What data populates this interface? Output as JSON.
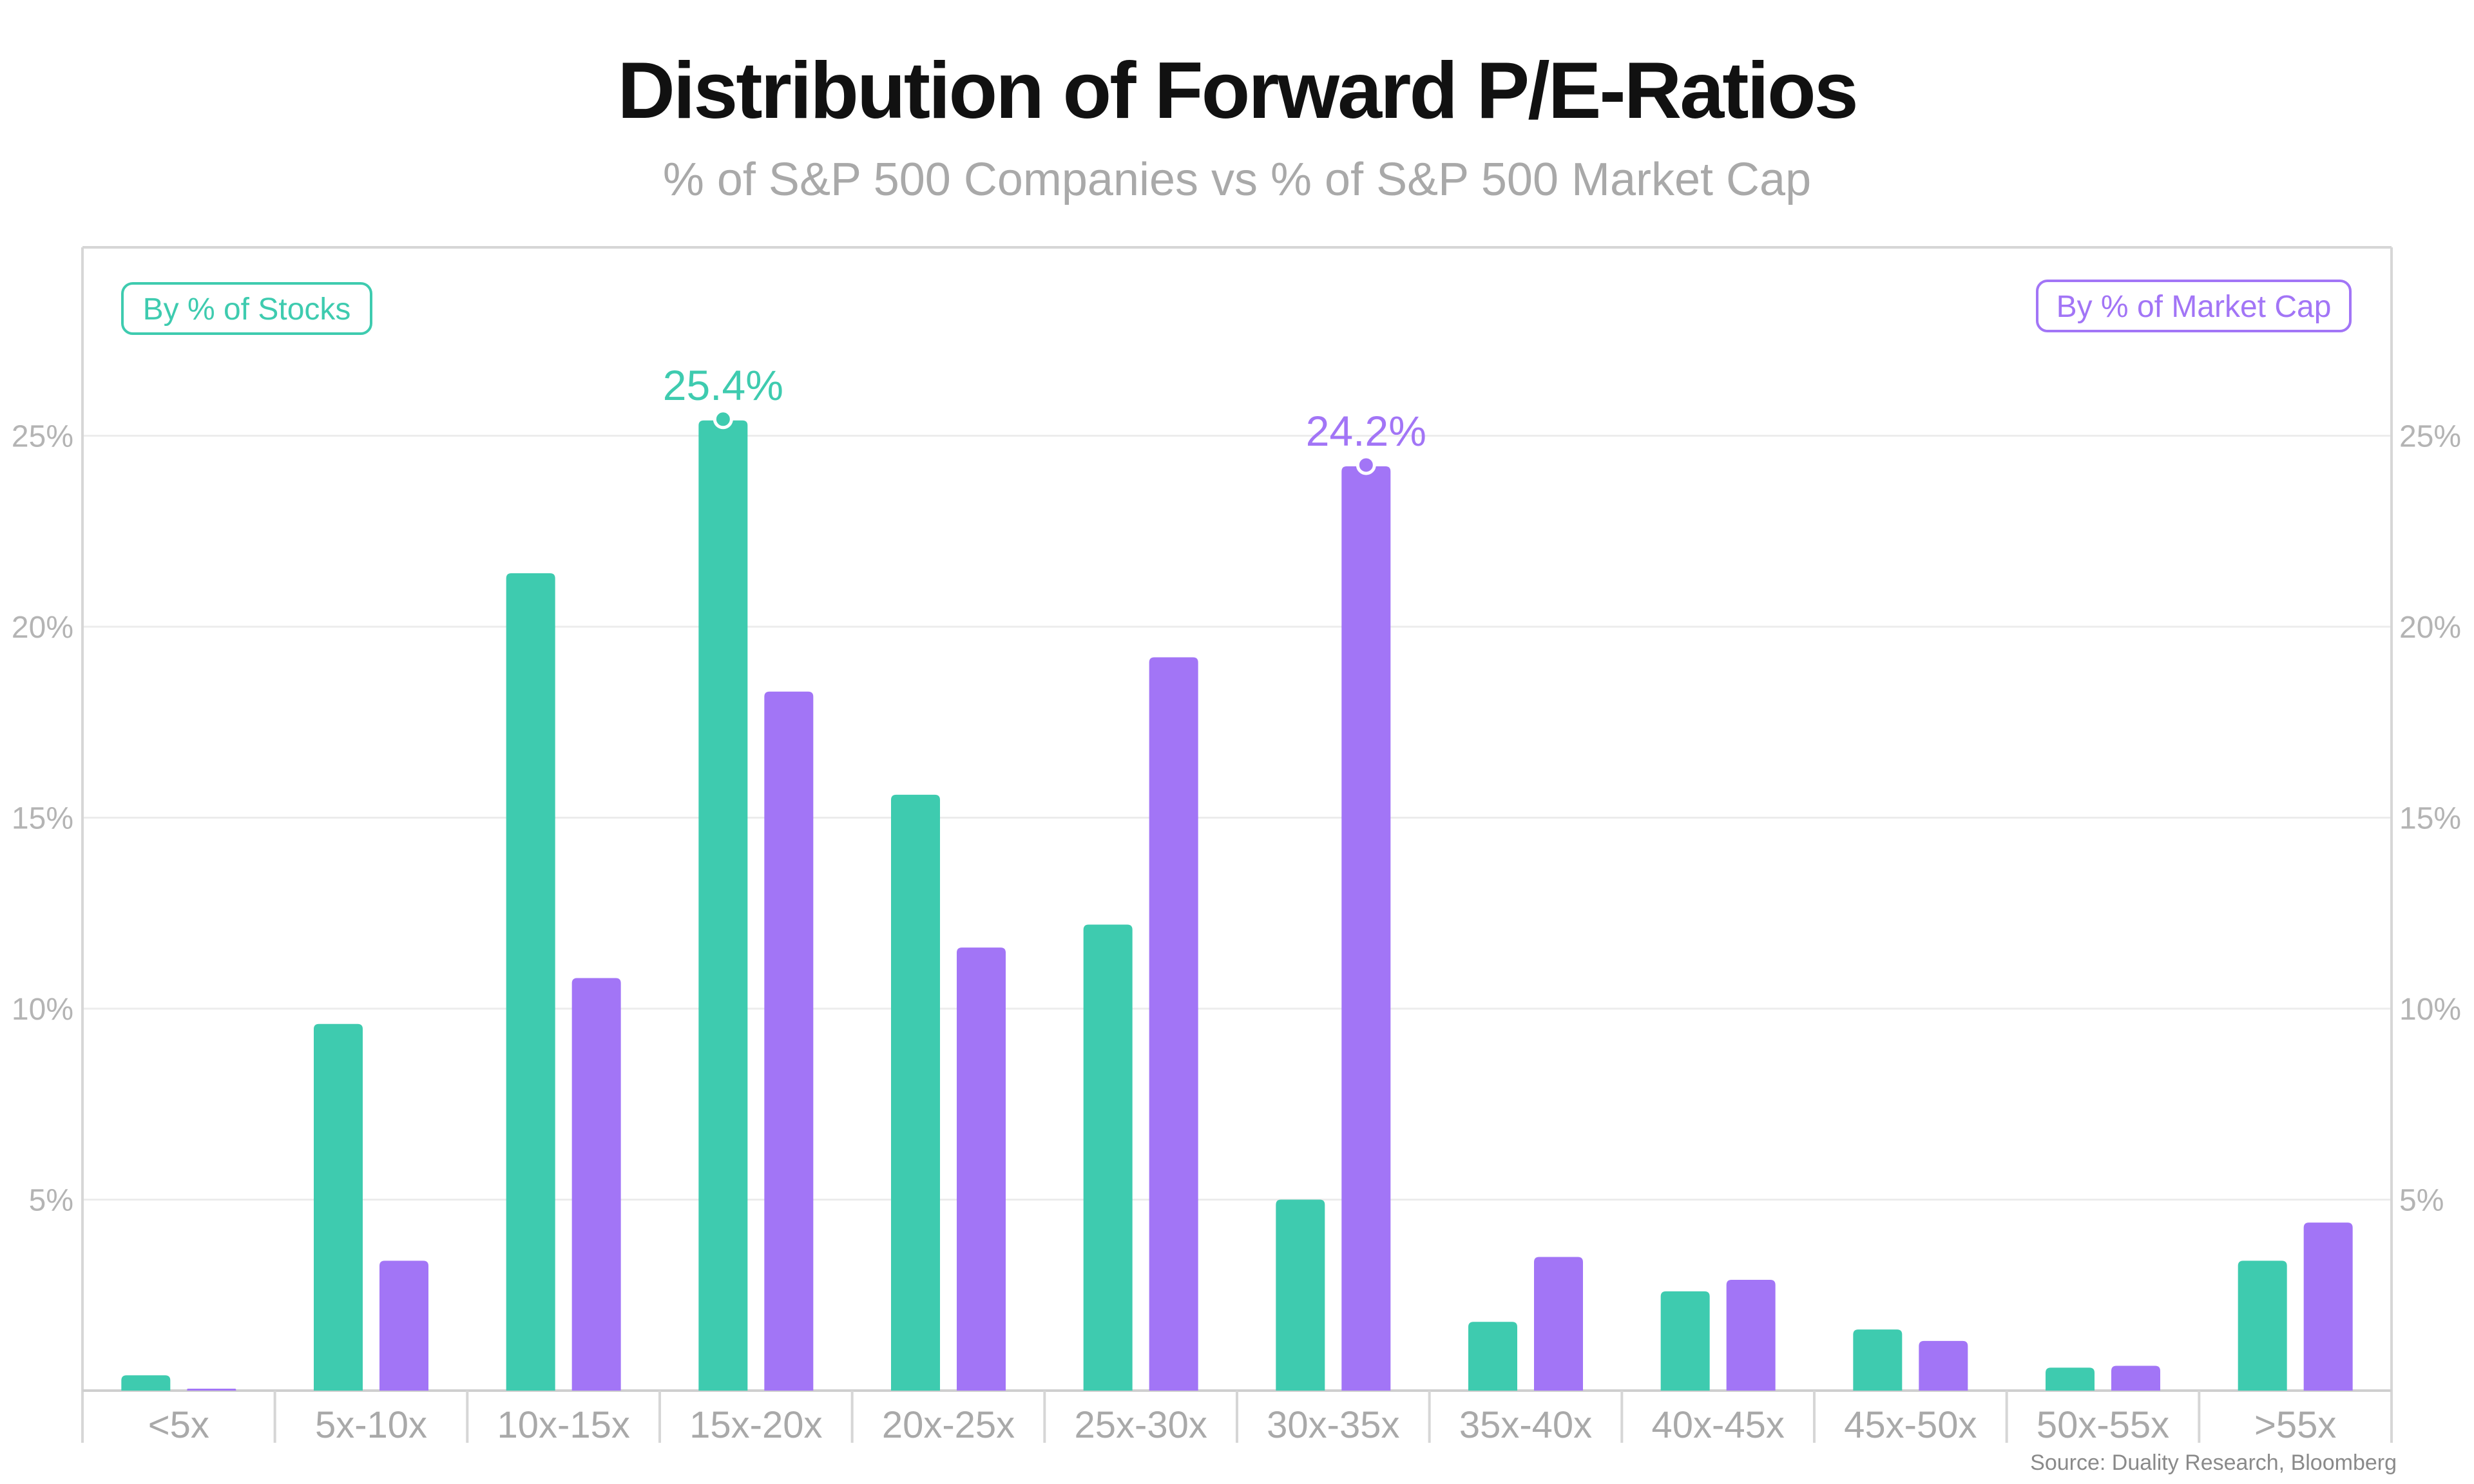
{
  "chart_data": {
    "type": "bar",
    "title": "Distribution of Forward P/E-Ratios",
    "subtitle": "% of S&P 500 Companies vs % of S&P 500 Market Cap",
    "categories": [
      "<5x",
      "5x-10x",
      "10x-15x",
      "15x-20x",
      "20x-25x",
      "25x-30x",
      "30x-35x",
      "35x-40x",
      "40x-45x",
      "45x-50x",
      "50x-55x",
      ">55x"
    ],
    "series": [
      {
        "name": "By % of Stocks",
        "color": "#3ecbaf",
        "values": [
          0.4,
          9.6,
          21.4,
          25.4,
          15.6,
          12.2,
          5.0,
          1.8,
          2.6,
          1.6,
          0.6,
          3.4
        ]
      },
      {
        "name": "By % of Market Cap",
        "color": "#a275f6",
        "values": [
          0.05,
          3.4,
          10.8,
          18.3,
          11.6,
          19.2,
          24.2,
          3.5,
          2.9,
          1.3,
          0.65,
          4.4
        ]
      }
    ],
    "ylim": [
      0,
      30
    ],
    "yticks": [
      5,
      10,
      15,
      20,
      25
    ],
    "ytick_labels": [
      "5%",
      "10%",
      "15%",
      "20%",
      "25%"
    ],
    "secondary_axis": true,
    "grid": true,
    "legend_placement": [
      "top-left",
      "top-right"
    ],
    "annotations": [
      {
        "series": 0,
        "category": "15x-20x",
        "text": "25.4%"
      },
      {
        "series": 1,
        "category": "30x-35x",
        "text": "24.2%"
      }
    ]
  },
  "source": "Source: Duality Research, Bloomberg"
}
